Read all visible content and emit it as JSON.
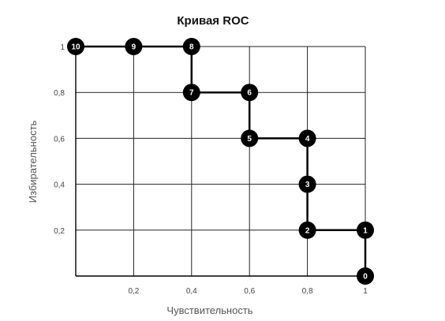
{
  "chart_data": {
    "type": "line",
    "title": "Кривая ROC",
    "xlabel": "Чувствительность",
    "ylabel": "Избирательность",
    "xlim": [
      0,
      1
    ],
    "ylim": [
      0,
      1
    ],
    "x_ticks": [
      {
        "value": 0.2,
        "label": "0,2"
      },
      {
        "value": 0.4,
        "label": "0,4"
      },
      {
        "value": 0.6,
        "label": "0,6"
      },
      {
        "value": 0.8,
        "label": "0,8"
      },
      {
        "value": 1.0,
        "label": "1"
      }
    ],
    "y_ticks": [
      {
        "value": 0.2,
        "label": "0,2"
      },
      {
        "value": 0.4,
        "label": "0,4"
      },
      {
        "value": 0.6,
        "label": "0,6"
      },
      {
        "value": 0.8,
        "label": "0,8"
      },
      {
        "value": 1.0,
        "label": "1"
      }
    ],
    "grid": {
      "vertical": true,
      "horizontal": true
    },
    "points": [
      {
        "label": "0",
        "x": 1.0,
        "y": 0.0
      },
      {
        "label": "1",
        "x": 1.0,
        "y": 0.2
      },
      {
        "label": "2",
        "x": 0.8,
        "y": 0.2
      },
      {
        "label": "3",
        "x": 0.8,
        "y": 0.4
      },
      {
        "label": "4",
        "x": 0.8,
        "y": 0.6
      },
      {
        "label": "5",
        "x": 0.6,
        "y": 0.6
      },
      {
        "label": "6",
        "x": 0.6,
        "y": 0.8
      },
      {
        "label": "7",
        "x": 0.4,
        "y": 0.8
      },
      {
        "label": "8",
        "x": 0.4,
        "y": 1.0
      },
      {
        "label": "9",
        "x": 0.2,
        "y": 1.0
      },
      {
        "label": "10",
        "x": 0.0,
        "y": 1.0
      }
    ],
    "colors": {
      "line": "#000000",
      "marker": "#000000",
      "marker_text": "#ffffff",
      "grid": "#222222",
      "axis": "#000000"
    }
  }
}
